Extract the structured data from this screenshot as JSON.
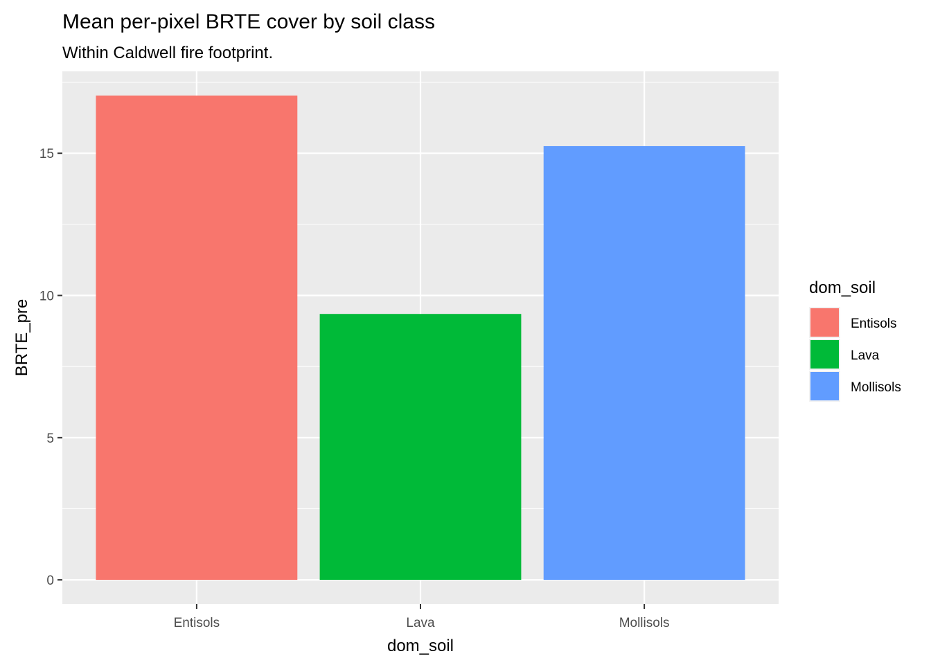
{
  "chart_data": {
    "type": "bar",
    "title": "Mean per-pixel BRTE cover by soil class",
    "subtitle": "Within Caldwell fire footprint.",
    "xlabel": "dom_soil",
    "ylabel": "BRTE_pre",
    "categories": [
      "Entisols",
      "Lava",
      "Mollisols"
    ],
    "values": [
      17.03,
      9.35,
      15.25
    ],
    "colors": [
      "#F8766D",
      "#00BA38",
      "#619CFF"
    ],
    "ylim": [
      -0.85,
      17.88
    ],
    "yticks": [
      0,
      5,
      10,
      15
    ],
    "ytick_labels": [
      "0",
      "5",
      "10",
      "15"
    ],
    "grid": true,
    "panel_background": "#EBEBEB",
    "legend": {
      "title": "dom_soil",
      "position": "right",
      "entries": [
        "Entisols",
        "Lava",
        "Mollisols"
      ]
    }
  }
}
